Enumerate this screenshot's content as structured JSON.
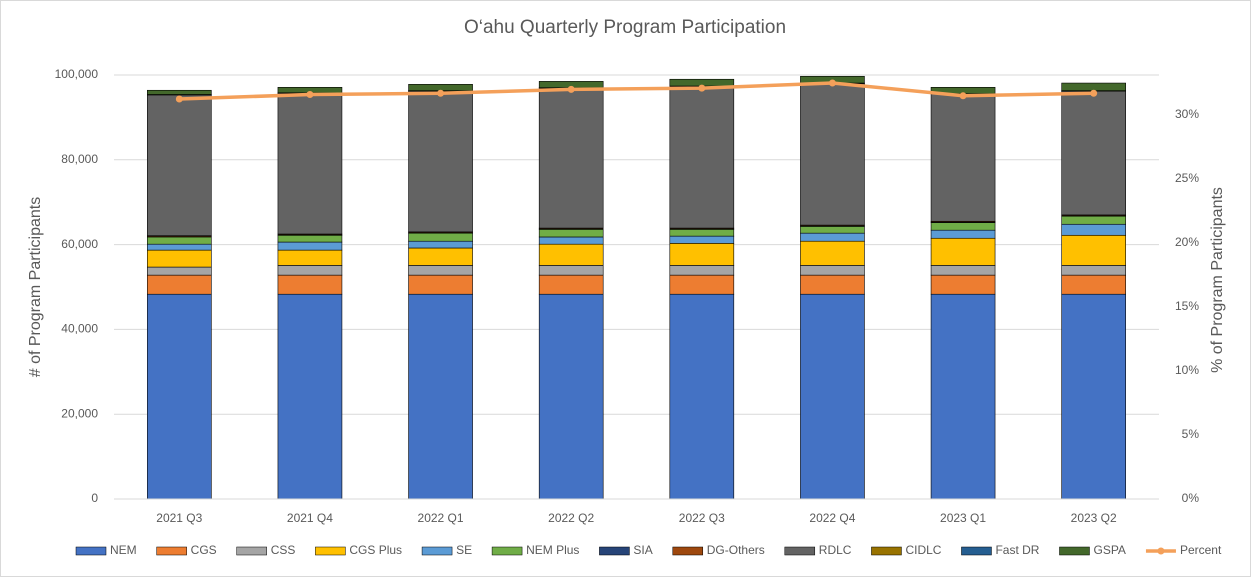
{
  "chart_data": {
    "type": "bar",
    "stacked": true,
    "title": "O‘ahu Quarterly Program Participation",
    "y_label": "# of Program Participants",
    "y2_label": "% of Program Participants",
    "categories": [
      "2021 Q3",
      "2021 Q4",
      "2022 Q1",
      "2022 Q2",
      "2022 Q3",
      "2022 Q4",
      "2023 Q1",
      "2023 Q2"
    ],
    "ylim": [
      0,
      100000
    ],
    "yticks": [
      0,
      {
        "value": 20000,
        "label": "20,000"
      },
      {
        "value": 40000,
        "label": "40,000"
      },
      {
        "value": 60000,
        "label": "60,000"
      },
      {
        "value": 80000,
        "label": "80,000"
      },
      {
        "value": 100000,
        "label": "100,000"
      }
    ],
    "y2lim": [
      0,
      33.125
    ],
    "y2ticks": [
      {
        "value": 0,
        "label": "0%"
      },
      {
        "value": 5,
        "label": "5%"
      },
      {
        "value": 10,
        "label": "10%"
      },
      {
        "value": 15,
        "label": "15%"
      },
      {
        "value": 20,
        "label": "20%"
      },
      {
        "value": 25,
        "label": "25%"
      },
      {
        "value": 30,
        "label": "30%"
      }
    ],
    "grid": true,
    "legend": "bottom",
    "series": [
      {
        "name": "NEM",
        "color": "#4472c4",
        "values": [
          48300,
          48300,
          48300,
          48300,
          48300,
          48300,
          48300,
          48300
        ]
      },
      {
        "name": "CGS",
        "color": "#ed7d31",
        "values": [
          4500,
          4500,
          4500,
          4500,
          4500,
          4500,
          4500,
          4500
        ]
      },
      {
        "name": "CSS",
        "color": "#a5a5a5",
        "values": [
          1900,
          2300,
          2300,
          2300,
          2300,
          2300,
          2300,
          2300
        ]
      },
      {
        "name": "CGS Plus",
        "color": "#ffc000",
        "values": [
          4000,
          3600,
          4100,
          5000,
          5200,
          5700,
          6400,
          7100
        ]
      },
      {
        "name": "SE",
        "color": "#5b9bd5",
        "values": [
          1400,
          1900,
          1600,
          1700,
          1700,
          1900,
          1900,
          2600
        ]
      },
      {
        "name": "NEM Plus",
        "color": "#70ad47",
        "values": [
          1700,
          1600,
          1900,
          1800,
          1600,
          1600,
          1800,
          1900
        ]
      },
      {
        "name": "SIA",
        "color": "#264478",
        "values": [
          100,
          100,
          100,
          100,
          100,
          100,
          100,
          100
        ]
      },
      {
        "name": "DG-Others",
        "color": "#9e480e",
        "values": [
          200,
          200,
          200,
          200,
          200,
          200,
          200,
          200
        ]
      },
      {
        "name": "RDLC",
        "color": "#636363",
        "values": [
          33200,
          33200,
          33200,
          33000,
          33400,
          33400,
          30000,
          29200
        ]
      },
      {
        "name": "CIDLC",
        "color": "#997300",
        "values": [
          50,
          50,
          50,
          50,
          50,
          50,
          50,
          50
        ]
      },
      {
        "name": "Fast DR",
        "color": "#255e91",
        "values": [
          50,
          50,
          50,
          50,
          50,
          50,
          50,
          50
        ]
      },
      {
        "name": "GSPA",
        "color": "#43682b",
        "values": [
          1000,
          1300,
          1500,
          1500,
          1600,
          1600,
          1500,
          1800
        ]
      },
      {
        "name": "Percent",
        "color": "#f4a05a",
        "type": "line",
        "axis": "y2",
        "values": [
          31.25,
          31.6,
          31.7,
          32.0,
          32.1,
          32.5,
          31.5,
          31.7
        ]
      }
    ]
  }
}
